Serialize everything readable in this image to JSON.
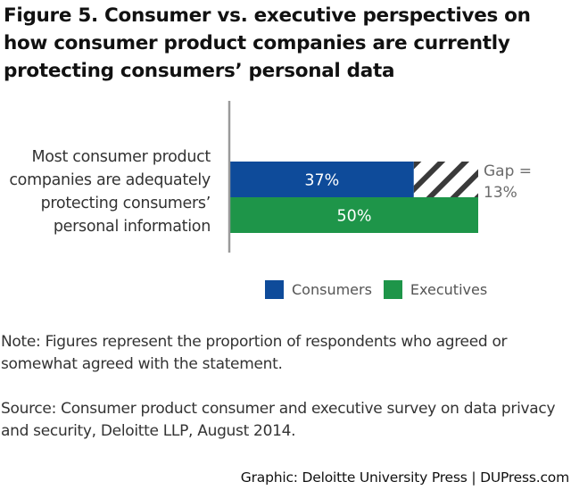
{
  "figure": {
    "title": "Figure 5. Consumer vs. executive perspectives on how consumer product companies are currently protecting consumers’ personal data",
    "note": "Note: Figures represent the proportion of respondents who agreed or somewhat agreed with the statement.",
    "source": "Source: Consumer product consumer and executive survey on data privacy and security, Deloitte LLP, August 2014.",
    "credit": "Graphic: Deloitte University Press  |  DUPress.com"
  },
  "chart_data": {
    "type": "bar",
    "orientation": "horizontal",
    "title": "Figure 5. Consumer vs. executive perspectives on how consumer product companies are currently protecting consumers’ personal data",
    "categories": [
      "Most consumer product companies are adequately protecting consumers’ personal information"
    ],
    "series": [
      {
        "name": "Consumers",
        "values": [
          37
        ],
        "labels": [
          "37%"
        ],
        "color": "#0e4b9a"
      },
      {
        "name": "Executives",
        "values": [
          50
        ],
        "labels": [
          "50%"
        ],
        "color": "#1e9549"
      }
    ],
    "annotations": [
      {
        "type": "gap",
        "text_line1": "Gap =",
        "text_line2": "13%",
        "value": 13,
        "pattern": "diagonal-hatch",
        "hatch_color": "#3a3a3a"
      }
    ],
    "xlabel": "",
    "ylabel": "",
    "xlim": [
      0,
      50
    ],
    "grid": false,
    "axis_color": "#9a9a9a",
    "legend": {
      "position": "bottom-center",
      "entries": [
        "Consumers",
        "Executives"
      ]
    }
  }
}
